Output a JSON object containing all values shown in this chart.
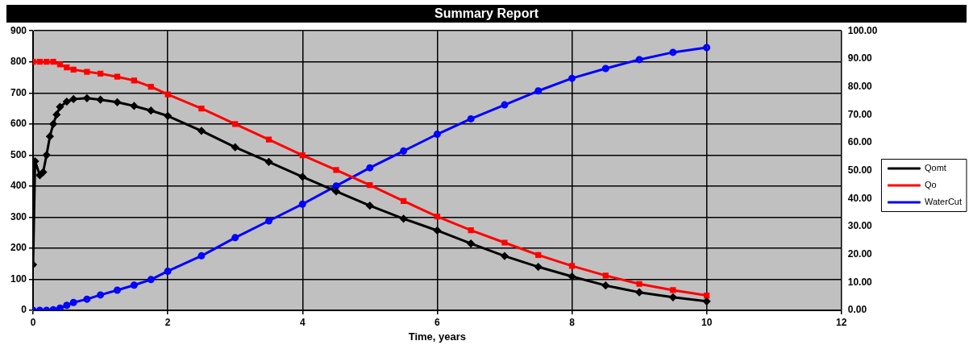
{
  "chart_data": {
    "type": "line",
    "title": "Summary Report",
    "xlabel": "Time, years",
    "xlim": [
      0,
      12
    ],
    "xticks": [
      0,
      2,
      4,
      6,
      8,
      10,
      12
    ],
    "ylim": [
      0,
      900
    ],
    "yticks": [
      0,
      100,
      200,
      300,
      400,
      500,
      600,
      700,
      800,
      900
    ],
    "y2lim": [
      0,
      100
    ],
    "y2ticks": [
      {
        "value": 0,
        "label": "0.00"
      },
      {
        "value": 10,
        "label": "10.00"
      },
      {
        "value": 20,
        "label": "20.00"
      },
      {
        "value": 30,
        "label": "30.00"
      },
      {
        "value": 40,
        "label": "40.00"
      },
      {
        "value": 50,
        "label": "50.00"
      },
      {
        "value": 60,
        "label": "60.00"
      },
      {
        "value": 70,
        "label": "70.00"
      },
      {
        "value": 80,
        "label": "80.00"
      },
      {
        "value": 90,
        "label": "90.00"
      },
      {
        "value": 100,
        "label": "100.00"
      }
    ],
    "grid": true,
    "legend": "right",
    "series": [
      {
        "name": "Qomt",
        "color": "#000000",
        "marker": "diamond",
        "x": [
          0,
          0.03,
          0.1,
          0.15,
          0.2,
          0.25,
          0.3,
          0.35,
          0.4,
          0.5,
          0.6,
          0.8,
          1,
          1.25,
          1.5,
          1.75,
          2,
          2.5,
          3,
          3.5,
          4,
          4.5,
          5,
          5.5,
          6,
          6.5,
          7,
          7.5,
          8,
          8.5,
          9,
          9.5,
          10
        ],
        "values": [
          147,
          480,
          435,
          445,
          500,
          560,
          600,
          630,
          655,
          672,
          680,
          683,
          678,
          670,
          658,
          643,
          626,
          578,
          525,
          478,
          430,
          383,
          337,
          295,
          257,
          215,
          175,
          140,
          109,
          80,
          58,
          42,
          29
        ]
      },
      {
        "name": "Qo",
        "color": "#ff0000",
        "marker": "square",
        "x": [
          0,
          0.1,
          0.2,
          0.3,
          0.4,
          0.5,
          0.6,
          0.8,
          1,
          1.25,
          1.5,
          1.75,
          2,
          2.5,
          3,
          3.5,
          4,
          4.5,
          5,
          5.5,
          6,
          6.5,
          7,
          7.5,
          8,
          8.5,
          9,
          9.5,
          10
        ],
        "values": [
          800,
          800,
          800,
          800,
          792,
          782,
          775,
          768,
          762,
          752,
          740,
          720,
          695,
          650,
          600,
          550,
          499,
          452,
          403,
          352,
          302,
          258,
          218,
          178,
          143,
          112,
          85,
          65,
          48
        ]
      },
      {
        "name": "WaterCut",
        "color": "#0000ff",
        "marker": "circle",
        "axis": "y2",
        "x": [
          0,
          0.1,
          0.2,
          0.3,
          0.4,
          0.5,
          0.6,
          0.8,
          1,
          1.25,
          1.5,
          1.75,
          2,
          2.5,
          3,
          3.5,
          4,
          4.5,
          5,
          5.5,
          6,
          6.5,
          7,
          7.5,
          8,
          8.5,
          9,
          9.5,
          10
        ],
        "values": [
          0,
          0,
          0,
          0.2,
          0.8,
          1.8,
          2.8,
          4,
          5.5,
          7.2,
          9,
          11,
          14,
          19.5,
          26,
          32,
          38,
          44.5,
          51,
          57,
          63,
          68.5,
          73.5,
          78.5,
          83,
          86.5,
          89.7,
          92.3,
          94
        ]
      }
    ]
  }
}
